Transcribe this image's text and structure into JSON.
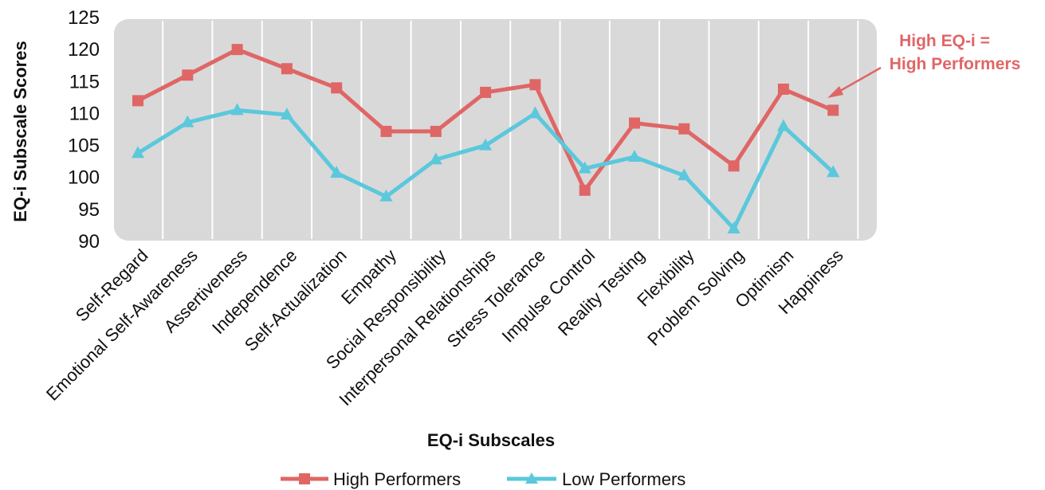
{
  "chart_data": {
    "type": "line",
    "categories": [
      "Self-Regard",
      "Emotional Self-Awareness",
      "Assertiveness",
      "Independence",
      "Self-Actualization",
      "Empathy",
      "Social Responsibility",
      "Interpersonal Relationships",
      "Stress Tolerance",
      "Impulse Control",
      "Reality Testing",
      "Flexibility",
      "Problem Solving",
      "Optimism",
      "Happiness"
    ],
    "series": [
      {
        "name": "High Performers",
        "color": "#e06666",
        "marker": "square",
        "values": [
          112,
          116,
          120,
          117,
          114,
          107.2,
          107.2,
          113.3,
          114.5,
          98,
          108.5,
          107.6,
          101.8,
          113.8,
          110.5
        ]
      },
      {
        "name": "Low Performers",
        "color": "#5bc8dc",
        "marker": "triangle",
        "values": [
          103.8,
          108.6,
          110.5,
          109.8,
          100.7,
          97,
          102.8,
          105,
          110,
          101.4,
          103.2,
          100.3,
          92,
          108,
          100.8
        ]
      }
    ],
    "ylabel": "EQ-i Subscale Scores",
    "xlabel": "EQ-i Subscales",
    "ylim": [
      90,
      125
    ],
    "yticks": [
      90,
      95,
      100,
      105,
      110,
      115,
      120,
      125
    ],
    "plot_background": "#d9d9d9",
    "grid": "vertical",
    "legend_position": "bottom",
    "annotation": {
      "lines": [
        "High EQ-i =",
        "High Performers"
      ],
      "color": "#e06666"
    }
  }
}
